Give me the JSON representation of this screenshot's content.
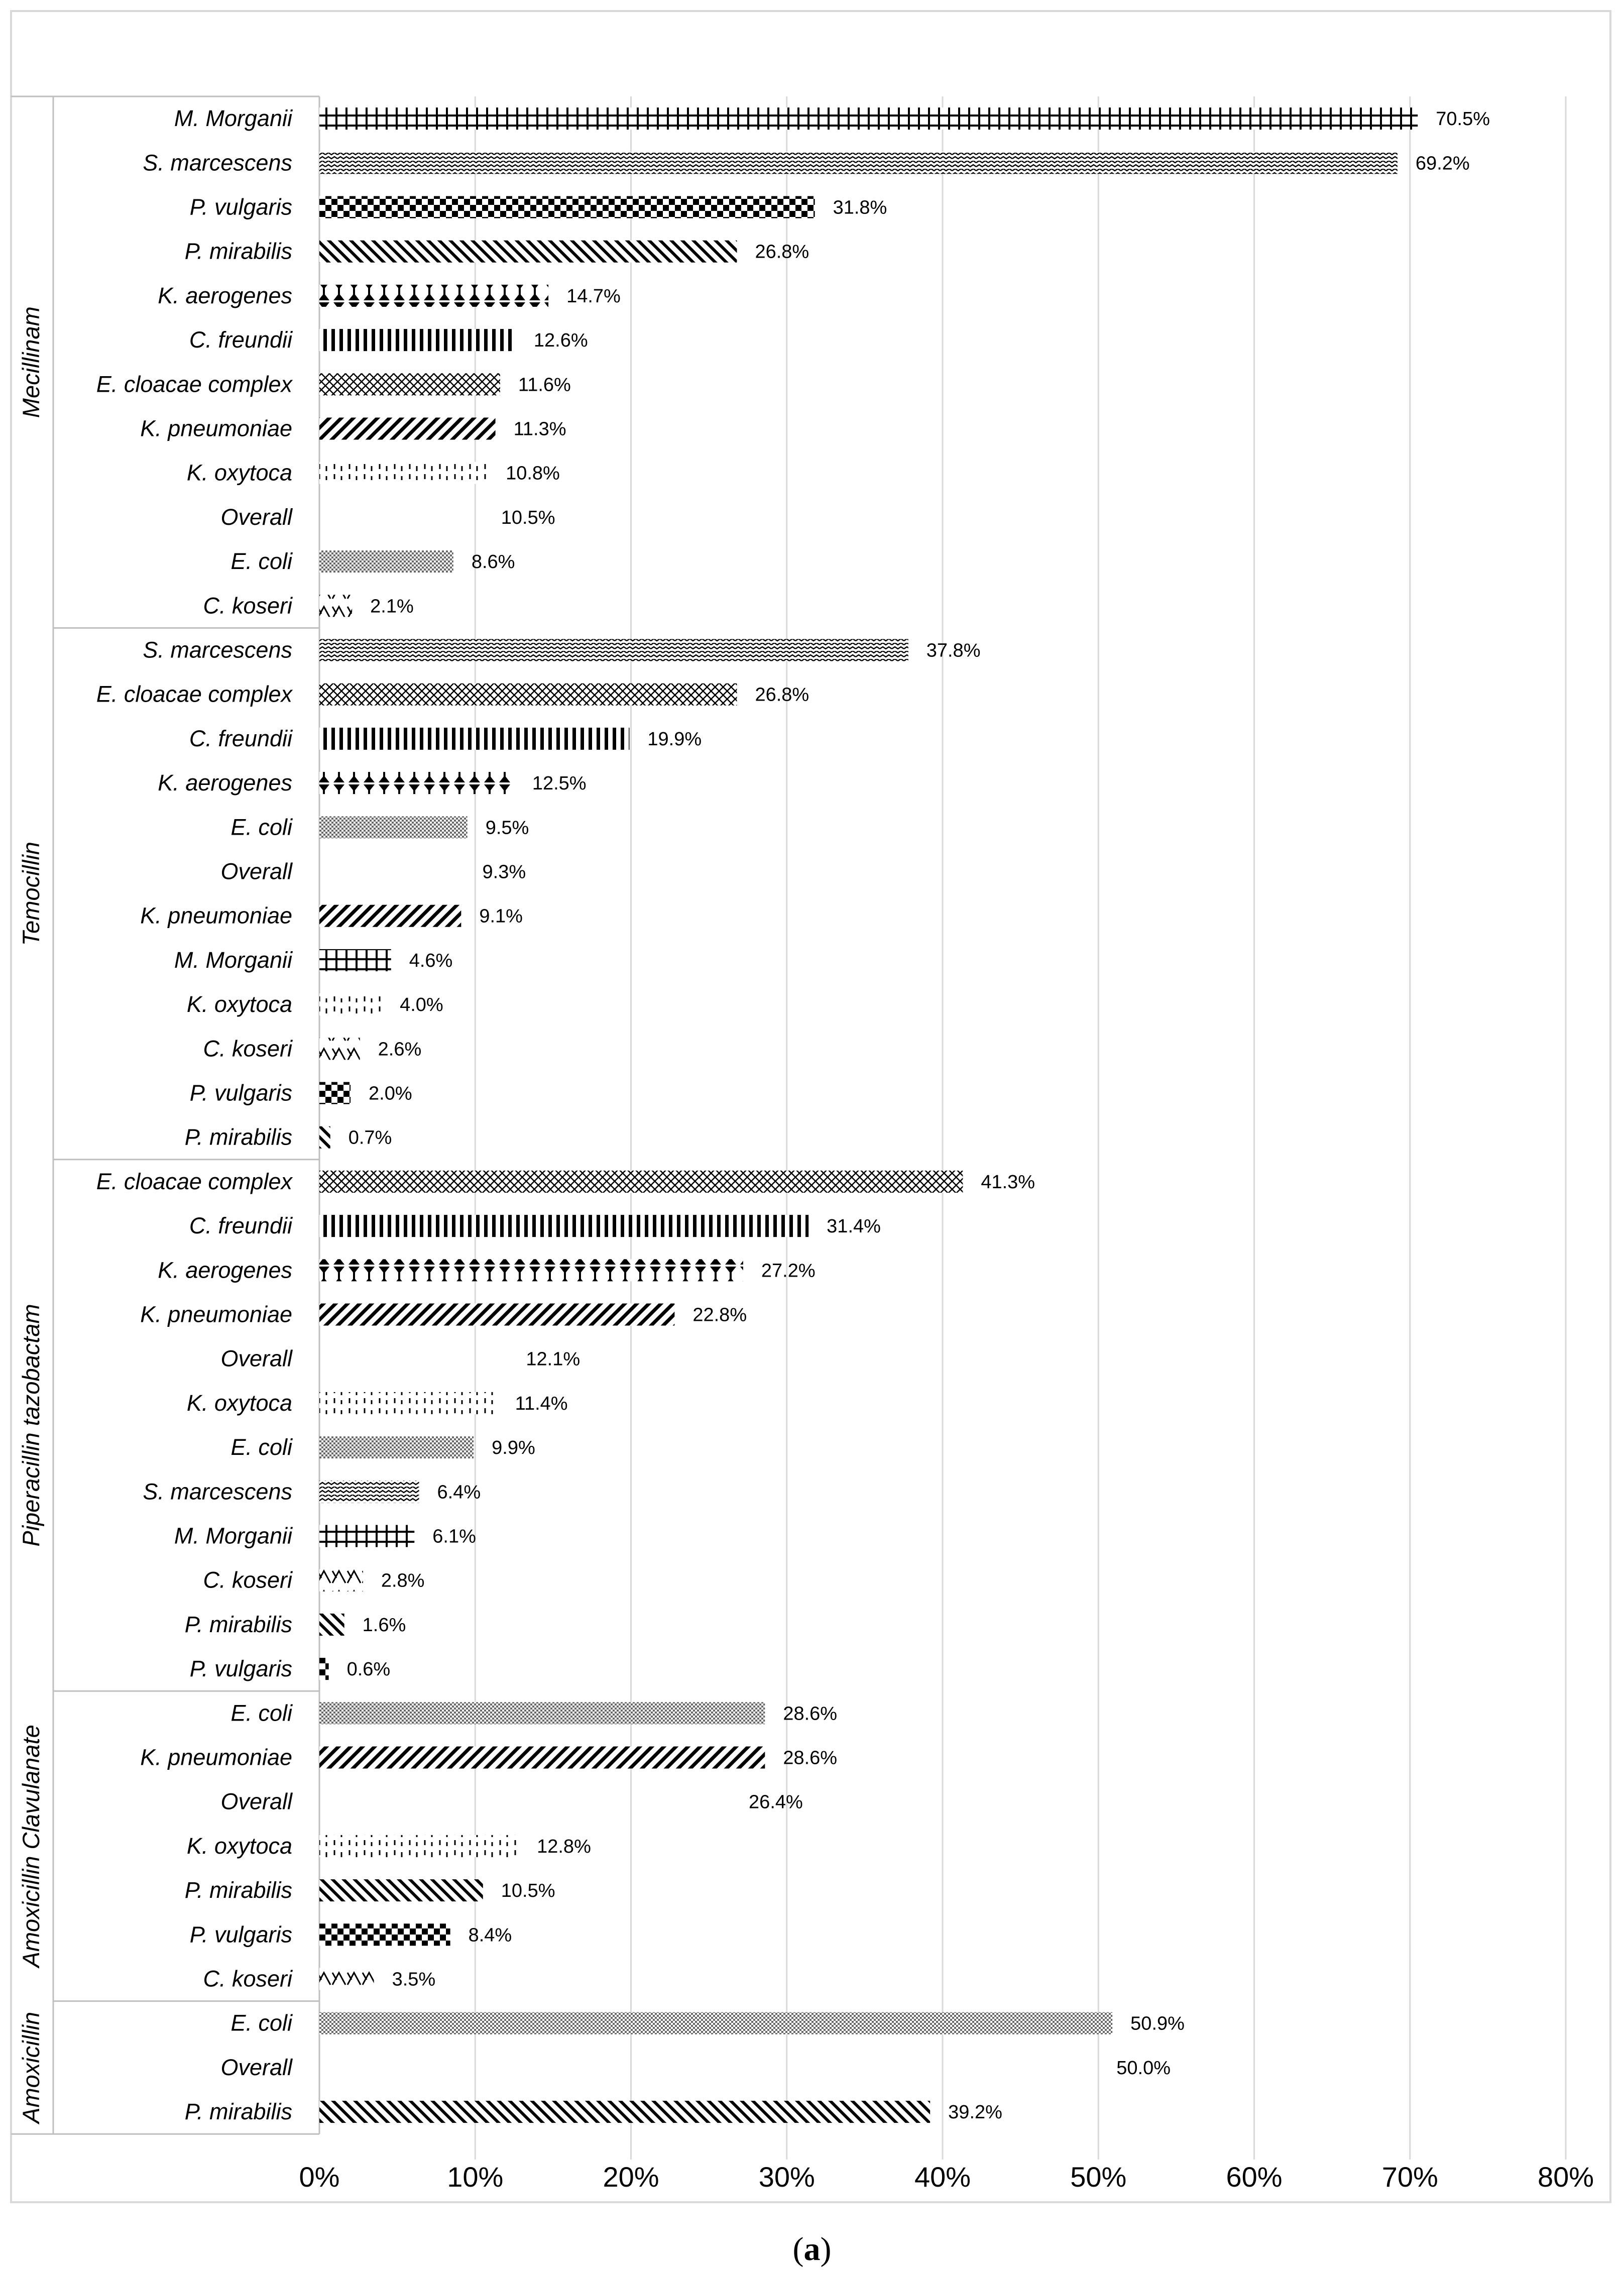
{
  "chart_data": {
    "type": "bar",
    "orientation": "horizontal",
    "xlim": [
      0,
      80
    ],
    "x_ticks": [
      "0%",
      "10%",
      "20%",
      "30%",
      "40%",
      "50%",
      "60%",
      "70%",
      "80%"
    ],
    "grid": true,
    "caption": {
      "prefix": "(",
      "letter": "a",
      "suffix": ")"
    },
    "groups": [
      {
        "name": "Mecillinam",
        "bars": [
          {
            "category": "M. Morganii",
            "value": 70.5,
            "label": "70.5%",
            "pattern": "grid"
          },
          {
            "category": "S. marcescens",
            "value": 69.2,
            "label": "69.2%",
            "pattern": "zigzag"
          },
          {
            "category": "P. vulgaris",
            "value": 31.8,
            "label": "31.8%",
            "pattern": "checker"
          },
          {
            "category": "P. mirabilis",
            "value": 26.8,
            "label": "26.8%",
            "pattern": "diag-down"
          },
          {
            "category": "K. aerogenes",
            "value": 14.7,
            "label": "14.7%",
            "pattern": "bowtie"
          },
          {
            "category": "C. freundii",
            "value": 12.6,
            "label": "12.6%",
            "pattern": "vertical"
          },
          {
            "category": "E. cloacae complex",
            "value": 11.6,
            "label": "11.6%",
            "pattern": "diamond"
          },
          {
            "category": "K. pneumoniae",
            "value": 11.3,
            "label": "11.3%",
            "pattern": "diag-up"
          },
          {
            "category": "K. oxytoca",
            "value": 10.8,
            "label": "10.8%",
            "pattern": "dotted"
          },
          {
            "category": "Overall",
            "value": 10.5,
            "label": "10.5%",
            "pattern": "solid"
          },
          {
            "category": "E. coli",
            "value": 8.6,
            "label": "8.6%",
            "pattern": "stipple"
          },
          {
            "category": "C. koseri",
            "value": 2.1,
            "label": "2.1%",
            "pattern": "weave"
          }
        ]
      },
      {
        "name": "Temocillin",
        "bars": [
          {
            "category": "S. marcescens",
            "value": 37.8,
            "label": "37.8%",
            "pattern": "zigzag"
          },
          {
            "category": "E. cloacae complex",
            "value": 26.8,
            "label": "26.8%",
            "pattern": "diamond"
          },
          {
            "category": "C. freundii",
            "value": 19.9,
            "label": "19.9%",
            "pattern": "vertical"
          },
          {
            "category": "K. aerogenes",
            "value": 12.5,
            "label": "12.5%",
            "pattern": "bowtie"
          },
          {
            "category": "E. coli",
            "value": 9.5,
            "label": "9.5%",
            "pattern": "stipple"
          },
          {
            "category": "Overall",
            "value": 9.3,
            "label": "9.3%",
            "pattern": "solid"
          },
          {
            "category": "K. pneumoniae",
            "value": 9.1,
            "label": "9.1%",
            "pattern": "diag-up"
          },
          {
            "category": "M. Morganii",
            "value": 4.6,
            "label": "4.6%",
            "pattern": "grid"
          },
          {
            "category": "K. oxytoca",
            "value": 4.0,
            "label": "4.0%",
            "pattern": "dotted"
          },
          {
            "category": "C. koseri",
            "value": 2.6,
            "label": "2.6%",
            "pattern": "weave"
          },
          {
            "category": "P. vulgaris",
            "value": 2.0,
            "label": "2.0%",
            "pattern": "checker"
          },
          {
            "category": "P. mirabilis",
            "value": 0.7,
            "label": "0.7%",
            "pattern": "diag-down"
          }
        ]
      },
      {
        "name": "Piperacillin tazobactam",
        "bars": [
          {
            "category": "E. cloacae complex",
            "value": 41.3,
            "label": "41.3%",
            "pattern": "diamond"
          },
          {
            "category": "C. freundii",
            "value": 31.4,
            "label": "31.4%",
            "pattern": "vertical"
          },
          {
            "category": "K. aerogenes",
            "value": 27.2,
            "label": "27.2%",
            "pattern": "bowtie"
          },
          {
            "category": "K. pneumoniae",
            "value": 22.8,
            "label": "22.8%",
            "pattern": "diag-up"
          },
          {
            "category": "Overall",
            "value": 12.1,
            "label": "12.1%",
            "pattern": "solid"
          },
          {
            "category": "K. oxytoca",
            "value": 11.4,
            "label": "11.4%",
            "pattern": "dotted"
          },
          {
            "category": "E. coli",
            "value": 9.9,
            "label": "9.9%",
            "pattern": "stipple"
          },
          {
            "category": "S. marcescens",
            "value": 6.4,
            "label": "6.4%",
            "pattern": "zigzag"
          },
          {
            "category": "M. Morganii",
            "value": 6.1,
            "label": "6.1%",
            "pattern": "grid"
          },
          {
            "category": "C. koseri",
            "value": 2.8,
            "label": "2.8%",
            "pattern": "weave"
          },
          {
            "category": "P. mirabilis",
            "value": 1.6,
            "label": "1.6%",
            "pattern": "diag-down"
          },
          {
            "category": "P. vulgaris",
            "value": 0.6,
            "label": "0.6%",
            "pattern": "checker"
          }
        ]
      },
      {
        "name": "Amoxicillin Clavulanate",
        "bars": [
          {
            "category": "E. coli",
            "value": 28.6,
            "label": "28.6%",
            "pattern": "stipple"
          },
          {
            "category": "K. pneumoniae",
            "value": 28.6,
            "label": "28.6%",
            "pattern": "diag-up"
          },
          {
            "category": "Overall",
            "value": 26.4,
            "label": "26.4%",
            "pattern": "solid"
          },
          {
            "category": "K. oxytoca",
            "value": 12.8,
            "label": "12.8%",
            "pattern": "dotted"
          },
          {
            "category": "P. mirabilis",
            "value": 10.5,
            "label": "10.5%",
            "pattern": "diag-down"
          },
          {
            "category": "P. vulgaris",
            "value": 8.4,
            "label": "8.4%",
            "pattern": "checker"
          },
          {
            "category": "C. koseri",
            "value": 3.5,
            "label": "3.5%",
            "pattern": "weave"
          }
        ]
      },
      {
        "name": "Amoxicillin",
        "bars": [
          {
            "category": "E. coli",
            "value": 50.9,
            "label": "50.9%",
            "pattern": "stipple"
          },
          {
            "category": "Overall",
            "value": 50.0,
            "label": "50.0%",
            "pattern": "solid"
          },
          {
            "category": "P. mirabilis",
            "value": 39.2,
            "label": "39.2%",
            "pattern": "diag-down"
          }
        ]
      }
    ]
  }
}
